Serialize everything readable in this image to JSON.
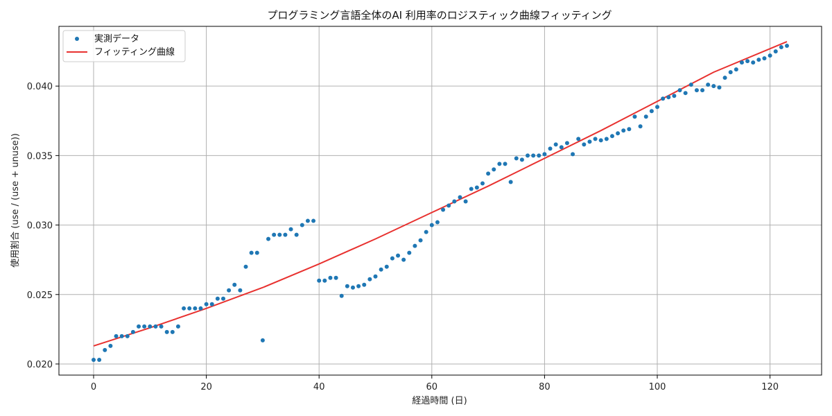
{
  "chart_data": {
    "type": "scatter",
    "title": "プログラミング言語全体のAI 利用率のロジスティック曲線フィッティング",
    "xlabel": "経過時間 (日)",
    "ylabel": "使用割合 (use / (use + unuse))",
    "xlim": [
      -6.15,
      129.15
    ],
    "ylim": [
      0.0192,
      0.0443
    ],
    "xticks": [
      0,
      20,
      40,
      60,
      80,
      100,
      120
    ],
    "yticks": [
      0.02,
      0.025,
      0.03,
      0.035,
      0.04
    ],
    "xtick_labels": [
      "0",
      "20",
      "40",
      "60",
      "80",
      "100",
      "120"
    ],
    "ytick_labels": [
      "0.020",
      "0.025",
      "0.030",
      "0.035",
      "0.040"
    ],
    "grid": true,
    "legend_position": "top-left",
    "legend": [
      "実測データ",
      "フィッティング曲線"
    ],
    "series": [
      {
        "name": "実測データ",
        "kind": "scatter",
        "color": "#1f77b4",
        "points": [
          [
            0,
            0.0203
          ],
          [
            1,
            0.0203
          ],
          [
            2,
            0.021
          ],
          [
            3,
            0.0213
          ],
          [
            4,
            0.022
          ],
          [
            5,
            0.022
          ],
          [
            6,
            0.022
          ],
          [
            7,
            0.0223
          ],
          [
            8,
            0.0227
          ],
          [
            9,
            0.0227
          ],
          [
            10,
            0.0227
          ],
          [
            11,
            0.0227
          ],
          [
            12,
            0.0227
          ],
          [
            13,
            0.0223
          ],
          [
            14,
            0.0223
          ],
          [
            15,
            0.0227
          ],
          [
            16,
            0.024
          ],
          [
            17,
            0.024
          ],
          [
            18,
            0.024
          ],
          [
            19,
            0.024
          ],
          [
            20,
            0.0243
          ],
          [
            21,
            0.0243
          ],
          [
            22,
            0.0247
          ],
          [
            23,
            0.0247
          ],
          [
            24,
            0.0253
          ],
          [
            25,
            0.0257
          ],
          [
            26,
            0.0253
          ],
          [
            27,
            0.027
          ],
          [
            28,
            0.028
          ],
          [
            29,
            0.028
          ],
          [
            30,
            0.0217
          ],
          [
            31,
            0.029
          ],
          [
            32,
            0.0293
          ],
          [
            33,
            0.0293
          ],
          [
            34,
            0.0293
          ],
          [
            35,
            0.0297
          ],
          [
            36,
            0.0293
          ],
          [
            37,
            0.03
          ],
          [
            38,
            0.0303
          ],
          [
            39,
            0.0303
          ],
          [
            40,
            0.026
          ],
          [
            41,
            0.026
          ],
          [
            42,
            0.0262
          ],
          [
            43,
            0.0262
          ],
          [
            44,
            0.0249
          ],
          [
            45,
            0.0256
          ],
          [
            46,
            0.0255
          ],
          [
            47,
            0.0256
          ],
          [
            48,
            0.0257
          ],
          [
            49,
            0.0261
          ],
          [
            50,
            0.0263
          ],
          [
            51,
            0.0268
          ],
          [
            52,
            0.027
          ],
          [
            53,
            0.0276
          ],
          [
            54,
            0.0278
          ],
          [
            55,
            0.0275
          ],
          [
            56,
            0.028
          ],
          [
            57,
            0.0285
          ],
          [
            58,
            0.0289
          ],
          [
            59,
            0.0295
          ],
          [
            60,
            0.03
          ],
          [
            61,
            0.0302
          ],
          [
            62,
            0.0311
          ],
          [
            63,
            0.0314
          ],
          [
            64,
            0.0317
          ],
          [
            65,
            0.032
          ],
          [
            66,
            0.0317
          ],
          [
            67,
            0.0326
          ],
          [
            68,
            0.0327
          ],
          [
            69,
            0.033
          ],
          [
            70,
            0.0337
          ],
          [
            71,
            0.034
          ],
          [
            72,
            0.0344
          ],
          [
            73,
            0.0344
          ],
          [
            74,
            0.0331
          ],
          [
            75,
            0.0348
          ],
          [
            76,
            0.0347
          ],
          [
            77,
            0.035
          ],
          [
            78,
            0.035
          ],
          [
            79,
            0.035
          ],
          [
            80,
            0.0351
          ],
          [
            81,
            0.0355
          ],
          [
            82,
            0.0358
          ],
          [
            83,
            0.0356
          ],
          [
            84,
            0.0359
          ],
          [
            85,
            0.0351
          ],
          [
            86,
            0.0362
          ],
          [
            87,
            0.0358
          ],
          [
            88,
            0.036
          ],
          [
            89,
            0.0362
          ],
          [
            90,
            0.0361
          ],
          [
            91,
            0.0362
          ],
          [
            92,
            0.0364
          ],
          [
            93,
            0.0366
          ],
          [
            94,
            0.0368
          ],
          [
            95,
            0.0369
          ],
          [
            96,
            0.0378
          ],
          [
            97,
            0.0371
          ],
          [
            98,
            0.0378
          ],
          [
            99,
            0.0382
          ],
          [
            100,
            0.0385
          ],
          [
            101,
            0.0391
          ],
          [
            102,
            0.0392
          ],
          [
            103,
            0.0393
          ],
          [
            104,
            0.0397
          ],
          [
            105,
            0.0395
          ],
          [
            106,
            0.0401
          ],
          [
            107,
            0.0397
          ],
          [
            108,
            0.0397
          ],
          [
            109,
            0.0401
          ],
          [
            110,
            0.04
          ],
          [
            111,
            0.0399
          ],
          [
            112,
            0.0406
          ],
          [
            113,
            0.041
          ],
          [
            114,
            0.0412
          ],
          [
            115,
            0.0417
          ],
          [
            116,
            0.0418
          ],
          [
            117,
            0.0417
          ],
          [
            118,
            0.0419
          ],
          [
            119,
            0.042
          ],
          [
            120,
            0.0422
          ],
          [
            121,
            0.0425
          ],
          [
            122,
            0.0428
          ],
          [
            123,
            0.0429
          ]
        ]
      },
      {
        "name": "フィッティング曲線",
        "kind": "line",
        "color": "#e8312f",
        "points": [
          [
            0,
            0.0213
          ],
          [
            10,
            0.0226
          ],
          [
            20,
            0.024
          ],
          [
            30,
            0.0255
          ],
          [
            40,
            0.0272
          ],
          [
            50,
            0.029
          ],
          [
            60,
            0.0309
          ],
          [
            70,
            0.0328
          ],
          [
            80,
            0.0348
          ],
          [
            90,
            0.0368
          ],
          [
            100,
            0.0389
          ],
          [
            110,
            0.041
          ],
          [
            123,
            0.0432
          ]
        ]
      }
    ]
  }
}
